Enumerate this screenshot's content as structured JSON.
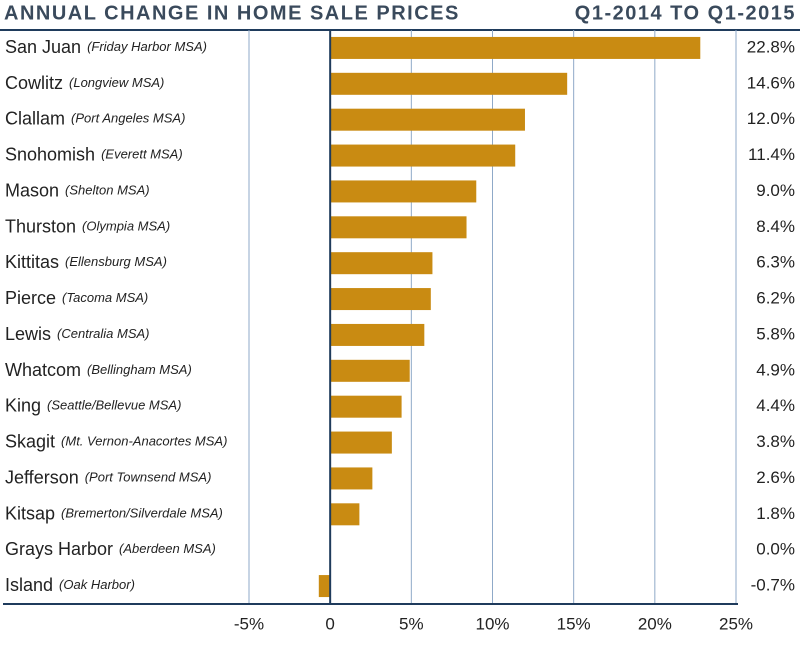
{
  "chart_data": {
    "type": "barh",
    "title": "ANNUAL CHANGE IN HOME SALE PRICES",
    "subtitle": "Q1-2014 TO Q1-2015",
    "categories": [
      "San Juan",
      "Cowlitz",
      "Clallam",
      "Snohomish",
      "Mason",
      "Thurston",
      "Kittitas",
      "Pierce",
      "Lewis",
      "Whatcom",
      "King",
      "Skagit",
      "Jefferson",
      "Kitsap",
      "Grays Harbor",
      "Island"
    ],
    "category_notes": [
      "(Friday Harbor MSA)",
      "(Longview MSA)",
      "(Port Angeles MSA)",
      "(Everett MSA)",
      "(Shelton MSA)",
      "(Olympia MSA)",
      "(Ellensburg MSA)",
      "(Tacoma MSA)",
      "(Centralia MSA)",
      "(Bellingham MSA)",
      "(Seattle/Bellevue MSA)",
      "(Mt. Vernon-Anacortes MSA)",
      "(Port Townsend MSA)",
      "(Bremerton/Silverdale MSA)",
      "(Aberdeen MSA)",
      "(Oak Harbor)"
    ],
    "values": [
      22.8,
      14.6,
      12.0,
      11.4,
      9.0,
      8.4,
      6.3,
      6.2,
      5.8,
      4.9,
      4.4,
      3.8,
      2.6,
      1.8,
      0.0,
      -0.7
    ],
    "value_labels": [
      "22.8%",
      "14.6%",
      "12.0%",
      "11.4%",
      "9.0%",
      "8.4%",
      "6.3%",
      "6.2%",
      "5.8%",
      "4.9%",
      "4.4%",
      "3.8%",
      "2.6%",
      "1.8%",
      "0.0%",
      "-0.7%"
    ],
    "color": "#c98b12",
    "xlim": [
      -5,
      25
    ],
    "xticks": [
      {
        "value": -5,
        "label": "-5%"
      },
      0,
      {
        "value": 5,
        "label": "5%"
      },
      {
        "value": 10,
        "label": "10%"
      },
      {
        "value": 15,
        "label": "15%"
      },
      {
        "value": 20,
        "label": "20%"
      },
      {
        "value": 25,
        "label": "25%"
      }
    ],
    "grid": true
  }
}
